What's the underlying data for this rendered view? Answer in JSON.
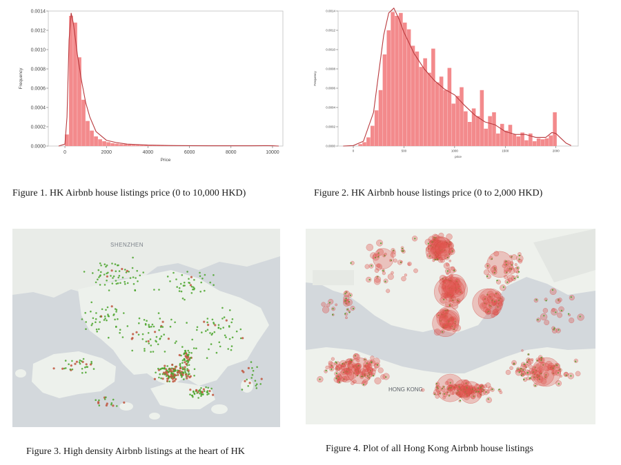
{
  "charts": [
    {
      "type": "bar",
      "xlabel": "Price",
      "ylabel": "Frequency",
      "xlim": [
        -800,
        10500
      ],
      "ylim": [
        0,
        0.0014
      ],
      "xticks": [
        "0",
        "2000",
        "4000",
        "6000",
        "8000",
        "10000"
      ],
      "yticks": [
        "0.0000",
        "0.0002",
        "0.0004",
        "0.0006",
        "0.0008",
        "0.0010",
        "0.0012",
        "0.0014"
      ],
      "bin_start": 0,
      "bin_width": 200,
      "values": [
        0.00012,
        0.00135,
        0.00128,
        0.00092,
        0.00048,
        0.00026,
        0.00016,
        0.0001,
        7e-05,
        5e-05,
        4e-05,
        3e-05,
        2.5e-05,
        2e-05,
        1.8e-05,
        1.5e-05,
        1.2e-05,
        1e-05,
        9e-06,
        8e-06,
        7e-06,
        6e-06,
        6e-06,
        5e-06,
        5e-06,
        4e-06,
        4e-06,
        4e-06,
        3e-06,
        3e-06,
        3e-06,
        3e-06,
        3e-06,
        2e-06,
        2e-06,
        2e-06,
        2e-06,
        2e-06,
        2e-06,
        2e-06,
        2e-06,
        2e-06,
        2e-06,
        2e-06,
        2e-06,
        2e-06,
        2e-06,
        2e-06,
        2e-06,
        4e-06
      ],
      "kde_x": [
        -300,
        0,
        100,
        200,
        300,
        400,
        500,
        600,
        800,
        1000,
        1200,
        1500,
        2000,
        2500,
        3000,
        4000,
        5000,
        6000,
        7000,
        8000,
        9000,
        9800,
        10000,
        10300
      ],
      "kde_y": [
        0,
        2e-05,
        0.0003,
        0.0011,
        0.00138,
        0.00128,
        0.00112,
        0.00095,
        0.00068,
        0.00045,
        0.0003,
        0.00015,
        6e-05,
        3.5e-05,
        2e-05,
        1e-05,
        6e-06,
        4e-06,
        3e-06,
        3e-06,
        3e-06,
        4e-06,
        3e-06,
        0
      ]
    },
    {
      "type": "bar",
      "xlabel": "price",
      "ylabel": "Frequency",
      "xlim": [
        -150,
        2220
      ],
      "ylim": [
        0,
        0.0014
      ],
      "xticks": [
        "0",
        "500",
        "1000",
        "1500",
        "2000"
      ],
      "yticks": [
        "0.0000",
        "0.0002",
        "0.0004",
        "0.0006",
        "0.0008",
        "0.0010",
        "0.0012",
        "0.0014"
      ],
      "bin_start": 50,
      "bin_width": 40,
      "values": [
        2e-05,
        4e-05,
        9e-05,
        0.00021,
        0.00037,
        0.00058,
        0.00095,
        0.0012,
        0.00139,
        0.00135,
        0.00138,
        0.00128,
        0.00121,
        0.00104,
        0.00098,
        0.00082,
        0.00091,
        0.00076,
        0.00101,
        0.00066,
        0.00072,
        0.00058,
        0.00081,
        0.00044,
        0.00052,
        0.00061,
        0.00036,
        0.00025,
        0.00039,
        0.00031,
        0.00058,
        0.00018,
        0.00031,
        0.00035,
        0.00013,
        0.00023,
        0.00016,
        0.00022,
        0.00012,
        0.0001,
        0.00014,
        6e-05,
        0.00013,
        5e-05,
        8e-05,
        7e-05,
        8e-05,
        0.00011,
        0.00035
      ],
      "kde_x": [
        -100,
        0,
        100,
        200,
        250,
        300,
        350,
        400,
        450,
        500,
        600,
        700,
        800,
        900,
        1000,
        1100,
        1200,
        1300,
        1400,
        1500,
        1600,
        1700,
        1800,
        1900,
        1960,
        2000,
        2050,
        2100,
        2150
      ],
      "kde_y": [
        0,
        5e-06,
        5e-05,
        0.00035,
        0.00075,
        0.00115,
        0.00138,
        0.00143,
        0.00132,
        0.00118,
        0.00096,
        0.0008,
        0.00068,
        0.00059,
        0.00053,
        0.00042,
        0.00032,
        0.00025,
        0.00022,
        0.00015,
        0.00012,
        0.00012,
        9e-05,
        9e-05,
        0.00014,
        0.00013,
        8e-05,
        3e-05,
        5e-06
      ]
    }
  ],
  "figures": {
    "fig1_caption": "Figure 1. HK Airbnb house listings price (0 to 10,000 HKD)",
    "fig2_caption": "Figure 2. HK Airbnb house listings price (0 to 2,000 HKD)",
    "fig3_caption": "Figure 3. High density Airbnb listings at the heart of HK",
    "fig4_caption": "Figure 4. Plot of all Hong Kong Airbnb house listings",
    "map3_label": "SHENZHEN",
    "map4_label": "HONG KONG"
  },
  "colors": {
    "bar": "#f38a8c",
    "kde": "#b8383c",
    "land": "#eef2ec",
    "water": "#d2d7db",
    "green_dot": "#4aa52c",
    "red_dot": "#e0554f"
  }
}
